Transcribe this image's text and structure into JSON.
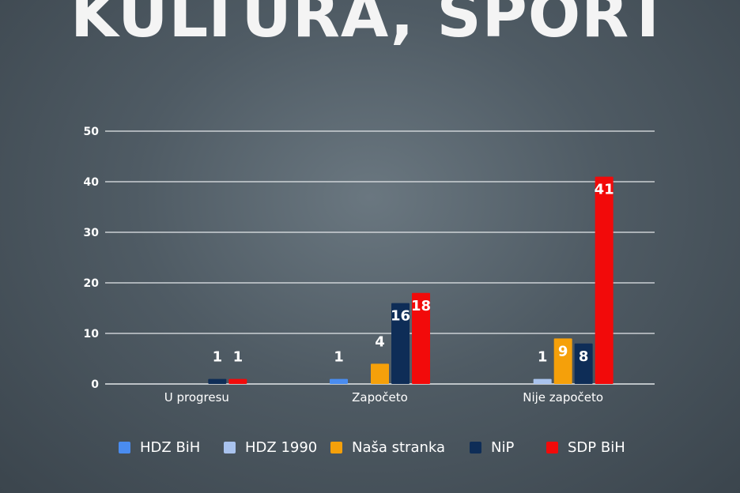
{
  "title": "KULTURA, SPORT",
  "chart_data": {
    "type": "bar",
    "categories": [
      "U progresu",
      "Započeto",
      "Nije započeto"
    ],
    "series": [
      {
        "name": "HDZ BiH",
        "color": "#4a8cf0",
        "values": [
          0,
          1,
          0
        ]
      },
      {
        "name": "HDZ 1990",
        "color": "#a9c3ee",
        "values": [
          0,
          0,
          1
        ]
      },
      {
        "name": "Naša stranka",
        "color": "#f5a00a",
        "values": [
          0,
          4,
          9
        ]
      },
      {
        "name": "NiP",
        "color": "#0e2d57",
        "values": [
          1,
          16,
          8
        ]
      },
      {
        "name": "SDP BiH",
        "color": "#f20a0a",
        "values": [
          1,
          18,
          41
        ]
      }
    ],
    "ylim": [
      0,
      50
    ],
    "yticks": [
      0,
      10,
      20,
      30,
      40,
      50
    ],
    "grid": true,
    "legend_position": "bottom"
  }
}
